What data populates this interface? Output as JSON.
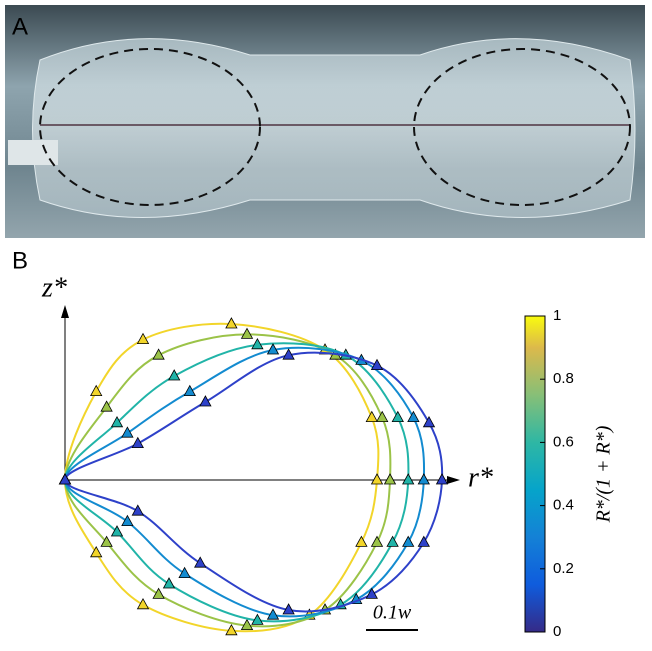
{
  "panels": {
    "a": "A",
    "b": "B"
  },
  "chart_data": {
    "type": "shape-profiles",
    "x_label": "r*",
    "y_label": "z*",
    "scale_bar": {
      "label": "0.1w",
      "length": 0.1
    },
    "colorbar": {
      "label": "R*/(1 + R*)",
      "lim": [
        0,
        1
      ],
      "ticks": [
        0,
        0.2,
        0.4,
        0.6,
        0.8,
        1
      ]
    },
    "series": [
      {
        "value": 1,
        "color": "#f2d52a",
        "x": [
          0,
          0.06,
          0.15,
          0.32,
          0.5,
          0.59,
          0.6,
          0.57,
          0.47,
          0.32,
          0.15,
          0.06
        ],
        "y": [
          0,
          0.17,
          0.27,
          0.3,
          0.25,
          0.12,
          0,
          -0.12,
          -0.26,
          -0.29,
          -0.24,
          -0.14
        ]
      },
      {
        "value": 0.75,
        "color": "#9bc348",
        "x": [
          0,
          0.08,
          0.18,
          0.35,
          0.52,
          0.61,
          0.625,
          0.6,
          0.5,
          0.35,
          0.18,
          0.08
        ],
        "y": [
          0,
          0.14,
          0.24,
          0.28,
          0.24,
          0.12,
          0,
          -0.12,
          -0.25,
          -0.28,
          -0.22,
          -0.12
        ]
      },
      {
        "value": 0.5,
        "color": "#21b4a8",
        "x": [
          0,
          0.1,
          0.21,
          0.37,
          0.54,
          0.64,
          0.66,
          0.63,
          0.53,
          0.37,
          0.2,
          0.1
        ],
        "y": [
          0,
          0.11,
          0.2,
          0.26,
          0.24,
          0.12,
          0,
          -0.12,
          -0.24,
          -0.27,
          -0.2,
          -0.1
        ]
      },
      {
        "value": 0.3,
        "color": "#138bd0",
        "x": [
          0,
          0.12,
          0.24,
          0.4,
          0.57,
          0.67,
          0.69,
          0.66,
          0.56,
          0.4,
          0.23,
          0.12
        ],
        "y": [
          0,
          0.09,
          0.17,
          0.25,
          0.23,
          0.12,
          0,
          -0.12,
          -0.23,
          -0.26,
          -0.18,
          -0.08
        ]
      },
      {
        "value": 0.1,
        "color": "#2e41c9",
        "x": [
          0,
          0.14,
          0.27,
          0.43,
          0.6,
          0.7,
          0.725,
          0.69,
          0.59,
          0.43,
          0.26,
          0.14
        ],
        "y": [
          0,
          0.07,
          0.15,
          0.24,
          0.22,
          0.11,
          0,
          -0.12,
          -0.22,
          -0.25,
          -0.16,
          -0.06
        ]
      }
    ]
  }
}
